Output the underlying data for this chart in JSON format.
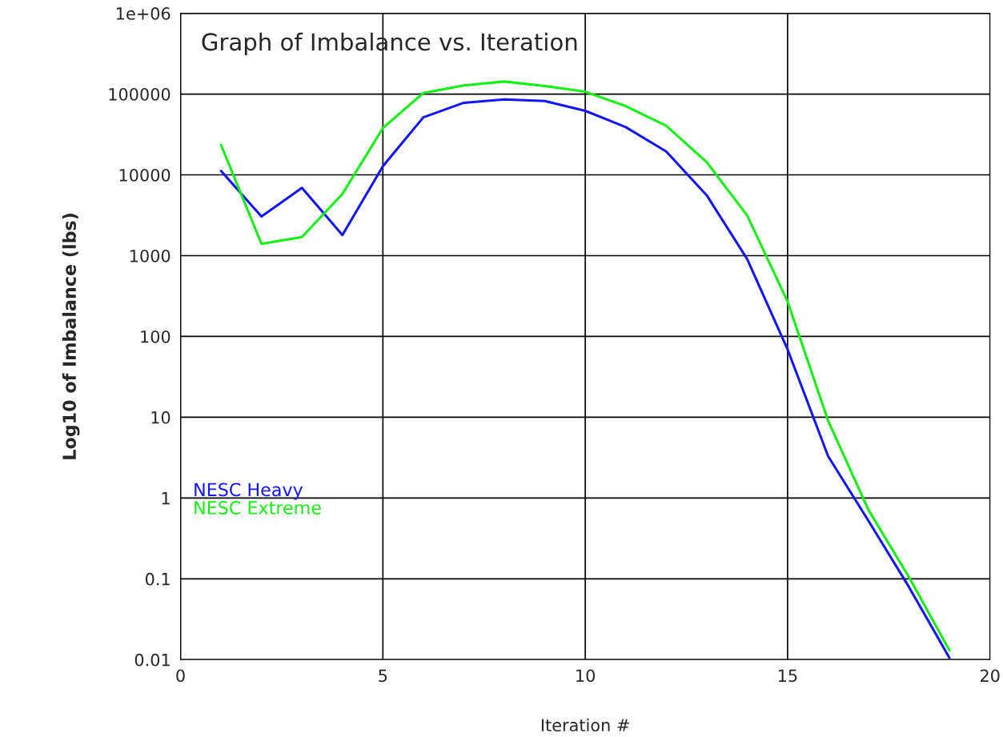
{
  "chart_data": {
    "type": "line",
    "title": "Graph of Imbalance vs. Iteration",
    "xlabel": "Iteration #",
    "ylabel": "Log10 of Imbalance (lbs)",
    "x": [
      1,
      2,
      3,
      4,
      5,
      6,
      7,
      8,
      9,
      10,
      11,
      12,
      13,
      14,
      15,
      16,
      17,
      18,
      19
    ],
    "series": [
      {
        "name": "NESC Heavy",
        "color": "#1414ff",
        "values": [
          11200,
          3050,
          6900,
          1800,
          12800,
          51500,
          78000,
          86000,
          82000,
          62000,
          39000,
          19500,
          5600,
          910,
          69,
          3.3,
          0.52,
          0.079,
          0.0105
        ]
      },
      {
        "name": "NESC Extreme",
        "color": "#14f014",
        "values": [
          23500,
          1400,
          1700,
          5800,
          38000,
          103000,
          128000,
          143000,
          126000,
          107000,
          71000,
          40500,
          14400,
          3150,
          270,
          9.1,
          0.71,
          0.105,
          0.013
        ]
      }
    ],
    "log": "y",
    "xlim": [
      0,
      20
    ],
    "ylim": [
      0.01,
      1000000
    ],
    "xticks": [
      0,
      5,
      10,
      15,
      20
    ],
    "yticks": [
      0.01,
      0.1,
      1,
      10,
      100,
      1000,
      10000,
      100000,
      {
        "value": 1000000,
        "label": "1e+06"
      }
    ],
    "grid": true,
    "legend": "bottom left",
    "marker": "none",
    "line_style": "solid"
  }
}
